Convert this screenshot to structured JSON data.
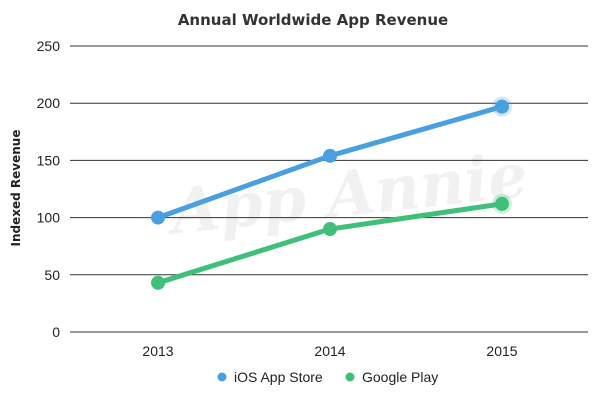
{
  "chart_data": {
    "type": "line",
    "title": "Annual Worldwide App Revenue",
    "ylabel": "Indexed Revenue",
    "xlabel": "",
    "categories": [
      "2013",
      "2014",
      "2015"
    ],
    "ylim": [
      0,
      250
    ],
    "yticks": [
      0,
      50,
      100,
      150,
      200,
      250
    ],
    "grid": true,
    "legend_position": "bottom-center",
    "watermark": "App Annie",
    "series": [
      {
        "name": "iOS App Store",
        "color": "#4a9fe0",
        "values": [
          100,
          154,
          197
        ]
      },
      {
        "name": "Google Play",
        "color": "#3fbf7a",
        "values": [
          43,
          90,
          112
        ]
      }
    ]
  }
}
